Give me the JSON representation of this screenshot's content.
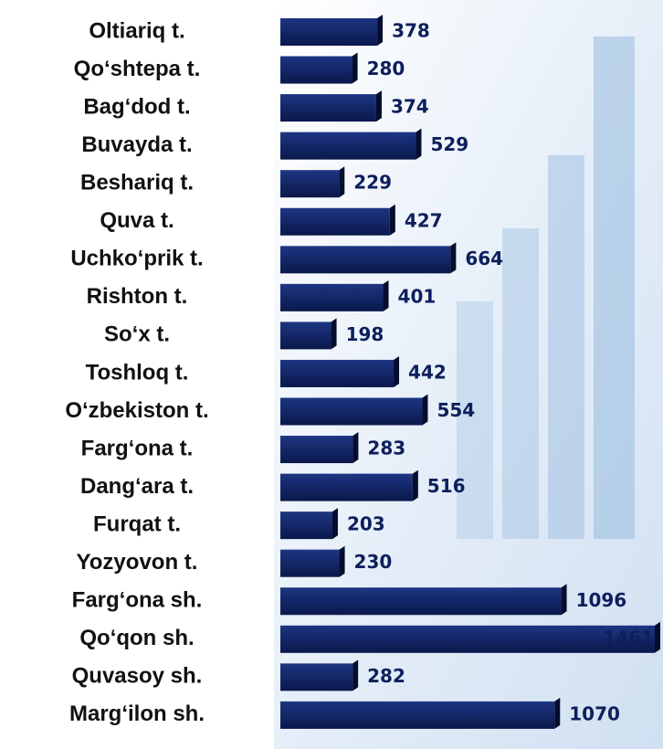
{
  "chart_data": {
    "type": "bar",
    "orientation": "horizontal",
    "categories": [
      "Oltiariq t.",
      "Qo‘shtepa t.",
      "Bag‘dod t.",
      "Buvayda t.",
      "Beshariq t.",
      "Quva t.",
      "Uchko‘prik t.",
      "Rishton t.",
      "So‘x t.",
      "Toshloq t.",
      "O‘zbekiston t.",
      "Farg‘ona t.",
      "Dang‘ara t.",
      "Furqat t.",
      "Yozyovon t.",
      "Farg‘ona sh.",
      "Qo‘qon sh.",
      "Quvasoy sh.",
      "Marg‘ilon sh."
    ],
    "values": [
      378,
      280,
      374,
      529,
      229,
      427,
      664,
      401,
      198,
      442,
      554,
      283,
      516,
      203,
      230,
      1096,
      1461,
      282,
      1070
    ],
    "color": "#0d1f5c"
  }
}
